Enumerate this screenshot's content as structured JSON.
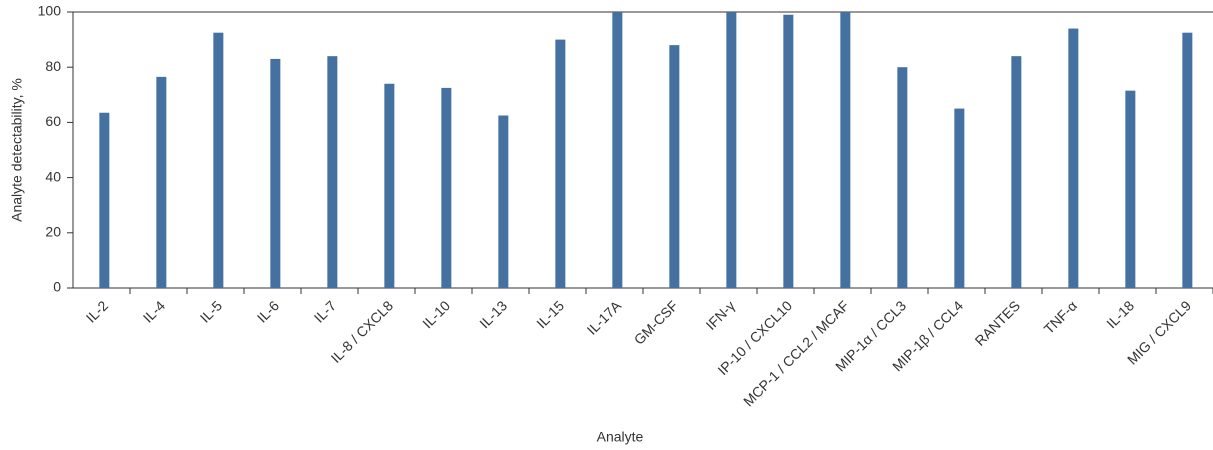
{
  "chart_data": {
    "type": "bar",
    "x_label": "Analyte",
    "y_label": "Analyte detectability, %",
    "categories": [
      "IL-2",
      "IL-4",
      "IL-5",
      "IL-6",
      "IL-7",
      "IL-8 / CXCL8",
      "IL-10",
      "IL-13",
      "IL-15",
      "IL-17A",
      "GM-CSF",
      "IFN-γ",
      "IP-10 / CXCL10",
      "MCP-1 / CCL2 / MCAF",
      "MIP-1α / CCL3",
      "MIP-1β / CCL4",
      "RANTES",
      "TNF-α",
      "IL-18",
      "MIG / CXCL9"
    ],
    "values": [
      63.5,
      76.5,
      92.5,
      83,
      84,
      74,
      72.5,
      62.5,
      90,
      100,
      88,
      100,
      99,
      100,
      80,
      65,
      84,
      94,
      71.5,
      92.5
    ],
    "color": "#44719f",
    "ylim": [
      0,
      100
    ],
    "yticks": [
      0,
      20,
      40,
      60,
      80,
      100
    ],
    "grid": false
  }
}
